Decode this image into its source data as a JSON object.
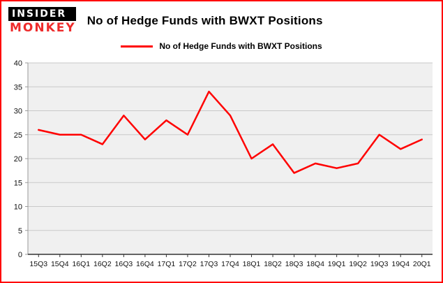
{
  "brand": {
    "logo_line1": "INSIDER",
    "logo_line2": "MONKEY",
    "logo_bg": "#000000",
    "logo_line1_color": "#ffffff",
    "logo_line2_color": "#ee2b2b"
  },
  "frame": {
    "border_color": "#ff0000"
  },
  "header": {
    "title": "No of Hedge Funds with BWXT Positions"
  },
  "legend": {
    "label": "No of Hedge Funds with BWXT Positions",
    "color": "#ff0000"
  },
  "chart_data": {
    "type": "line",
    "title": "No of Hedge Funds with BWXT Positions",
    "categories": [
      "15Q3",
      "15Q4",
      "16Q1",
      "16Q2",
      "16Q3",
      "16Q4",
      "17Q1",
      "17Q2",
      "17Q3",
      "17Q4",
      "18Q1",
      "18Q2",
      "18Q3",
      "18Q4",
      "19Q1",
      "19Q2",
      "19Q3",
      "19Q4",
      "20Q1"
    ],
    "values": [
      26,
      25,
      25,
      23,
      29,
      24,
      28,
      25,
      34,
      29,
      20,
      23,
      17,
      19,
      18,
      19,
      25,
      22,
      24
    ],
    "xlabel": "",
    "ylabel": "",
    "ylim": [
      0,
      40
    ],
    "yticks": [
      0,
      5,
      10,
      15,
      20,
      25,
      30,
      35,
      40
    ],
    "grid": true,
    "legend_position": "top",
    "line_color": "#ff0000",
    "plot_bg": "#f0f0f0",
    "grid_color": "#c9c9c9",
    "axis_color": "#333333",
    "minor_axis_color": "#999999",
    "tick_label_color": "#111111"
  }
}
